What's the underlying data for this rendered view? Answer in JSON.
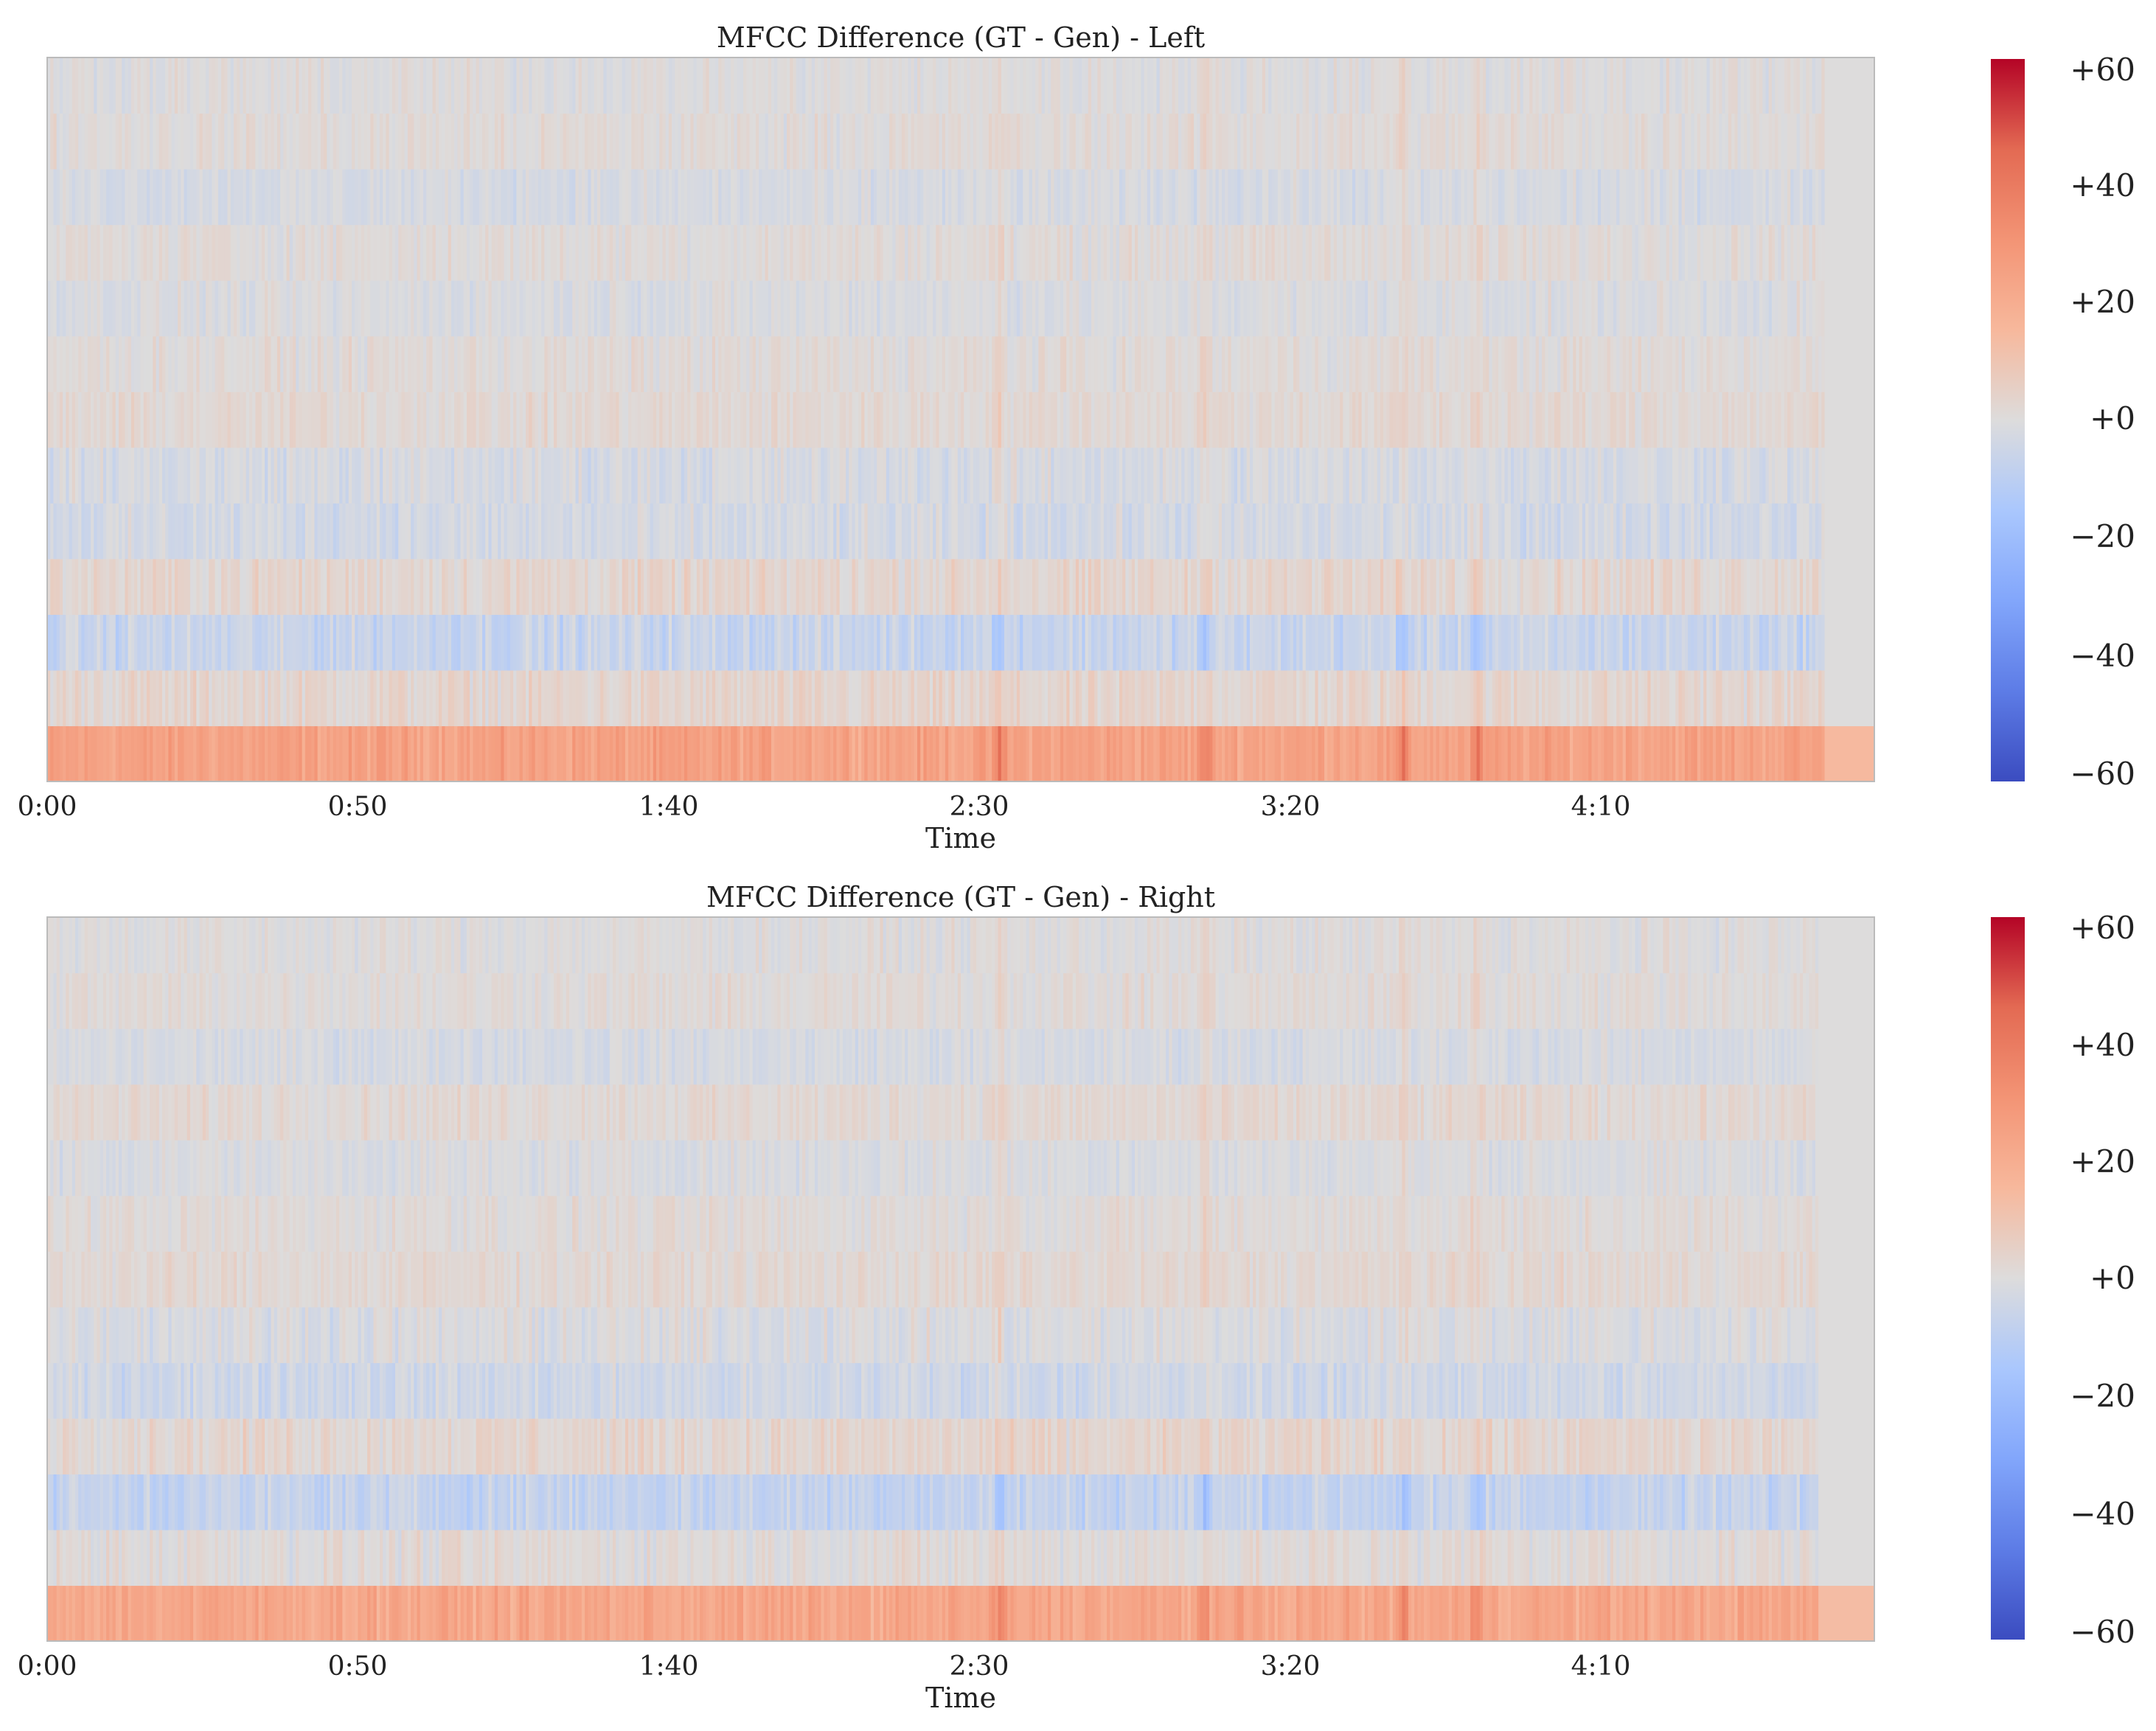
{
  "chart_data": [
    {
      "type": "heatmap",
      "title": "MFCC Difference (GT - Gen) - Left",
      "xlabel": "Time",
      "ylabel": "",
      "x_ticks": [
        "0:00",
        "0:50",
        "1:40",
        "2:30",
        "3:20",
        "4:10"
      ],
      "x_tick_seconds": [
        0,
        50,
        100,
        150,
        200,
        250
      ],
      "x_range_seconds": [
        0,
        294
      ],
      "active_until_seconds": 286,
      "n_coefficients": 13,
      "colormap": "coolwarm",
      "colorbar": {
        "ticks": [
          "+60",
          "+40",
          "+20",
          "+0",
          "−20",
          "−40",
          "−60"
        ],
        "range": [
          -60,
          60
        ]
      },
      "row_mean_differences_bottom_to_top": [
        24,
        3,
        -6,
        3,
        -3,
        -2,
        2,
        1,
        -1,
        1,
        -2,
        1,
        0
      ],
      "row_variability": [
        5,
        4,
        5,
        4,
        4,
        4,
        3,
        3,
        3,
        3,
        3,
        3,
        3
      ],
      "hotspots_seconds": [
        186,
        153,
        218,
        230
      ]
    },
    {
      "type": "heatmap",
      "title": "MFCC Difference (GT - Gen) - Right",
      "xlabel": "Time",
      "ylabel": "",
      "x_ticks": [
        "0:00",
        "0:50",
        "1:40",
        "2:30",
        "3:20",
        "4:10"
      ],
      "x_tick_seconds": [
        0,
        50,
        100,
        150,
        200,
        250
      ],
      "x_range_seconds": [
        0,
        294
      ],
      "active_until_seconds": 285,
      "n_coefficients": 13,
      "colormap": "coolwarm",
      "colorbar": {
        "ticks": [
          "+60",
          "+40",
          "+20",
          "+0",
          "−20",
          "−40",
          "−60"
        ],
        "range": [
          -60,
          60
        ]
      },
      "row_mean_differences_bottom_to_top": [
        22,
        1,
        -7,
        3,
        -4,
        -1,
        2,
        1,
        -1,
        2,
        -2,
        1,
        0
      ],
      "row_variability": [
        5,
        4,
        5,
        4,
        4,
        4,
        3,
        3,
        3,
        3,
        3,
        3,
        3
      ],
      "hotspots_seconds": [
        186,
        153,
        218,
        230
      ]
    }
  ]
}
